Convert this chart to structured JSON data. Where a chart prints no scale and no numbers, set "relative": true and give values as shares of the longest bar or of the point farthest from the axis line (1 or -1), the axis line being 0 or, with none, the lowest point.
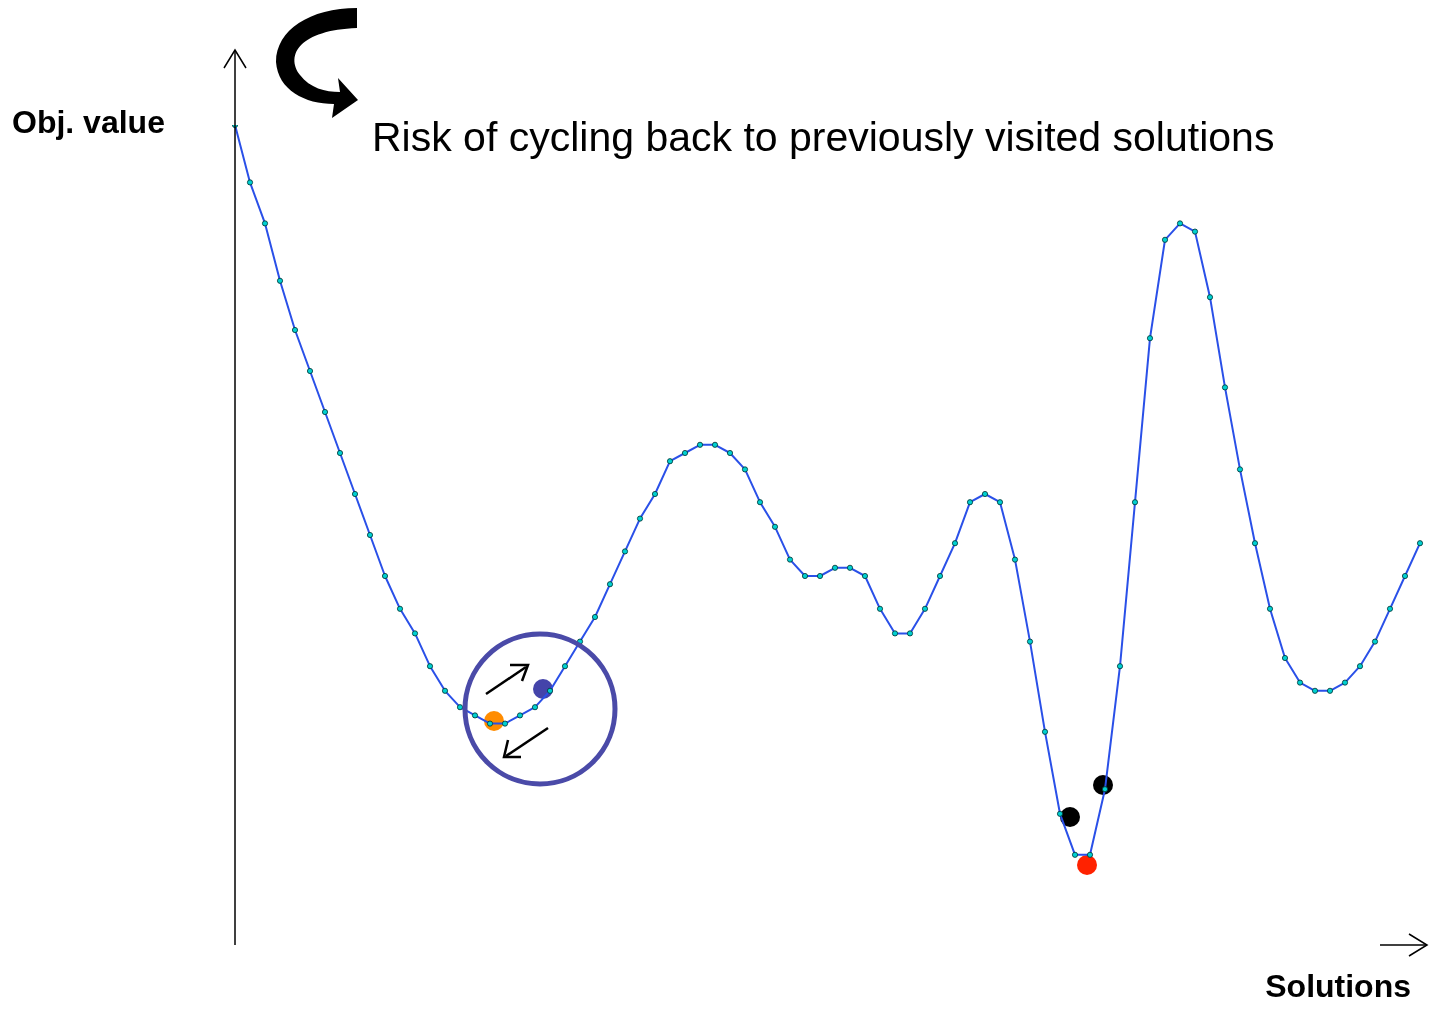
{
  "chart_data": {
    "type": "line",
    "relative": true,
    "xlabel": "Solutions",
    "ylabel": "Obj. value",
    "annotations": [
      "Risk of cycling back to previously visited solutions"
    ],
    "categories": [
      null,
      null,
      null,
      null,
      null,
      null,
      null,
      null,
      null,
      null,
      null,
      null,
      null,
      null,
      null,
      null,
      null,
      null,
      null,
      null,
      null,
      null,
      null,
      null,
      null,
      null,
      null,
      null,
      null,
      null,
      null,
      null,
      null,
      null,
      null,
      null,
      null,
      null,
      null,
      null,
      null,
      null,
      null,
      null,
      null,
      null,
      null,
      null,
      null,
      null,
      null,
      null,
      null,
      null,
      null,
      null,
      null,
      null,
      null,
      null,
      null,
      null,
      null,
      null,
      null,
      null,
      null,
      null,
      null,
      null,
      null,
      null,
      null,
      null,
      null,
      null,
      null,
      null,
      null,
      null
    ],
    "marker": "circle",
    "series": [
      {
        "color": "#2a50e8",
        "values": [
          1.0,
          0.93,
          0.88,
          0.81,
          0.75,
          0.7,
          0.65,
          0.6,
          0.55,
          0.5,
          0.45,
          0.41,
          0.38,
          0.34,
          0.31,
          0.29,
          0.28,
          0.27,
          0.27,
          0.28,
          0.29,
          0.31,
          0.34,
          0.37,
          0.4,
          0.44,
          0.48,
          0.52,
          0.55,
          0.59,
          0.6,
          0.61,
          0.61,
          0.6,
          0.58,
          0.54,
          0.51,
          0.47,
          0.45,
          0.45,
          0.46,
          0.46,
          0.45,
          0.41,
          0.38,
          0.38,
          0.41,
          0.45,
          0.49,
          0.54,
          0.55,
          0.54,
          0.47,
          0.37,
          0.26,
          0.16,
          0.11,
          0.11,
          0.19,
          0.34,
          0.54,
          0.74,
          0.86,
          0.88,
          0.87,
          0.79,
          0.68,
          0.58,
          0.49,
          0.41,
          0.35,
          0.32,
          0.31,
          0.31,
          0.32,
          0.34,
          0.37,
          0.41,
          0.45,
          0.49
        ]
      }
    ]
  }
}
